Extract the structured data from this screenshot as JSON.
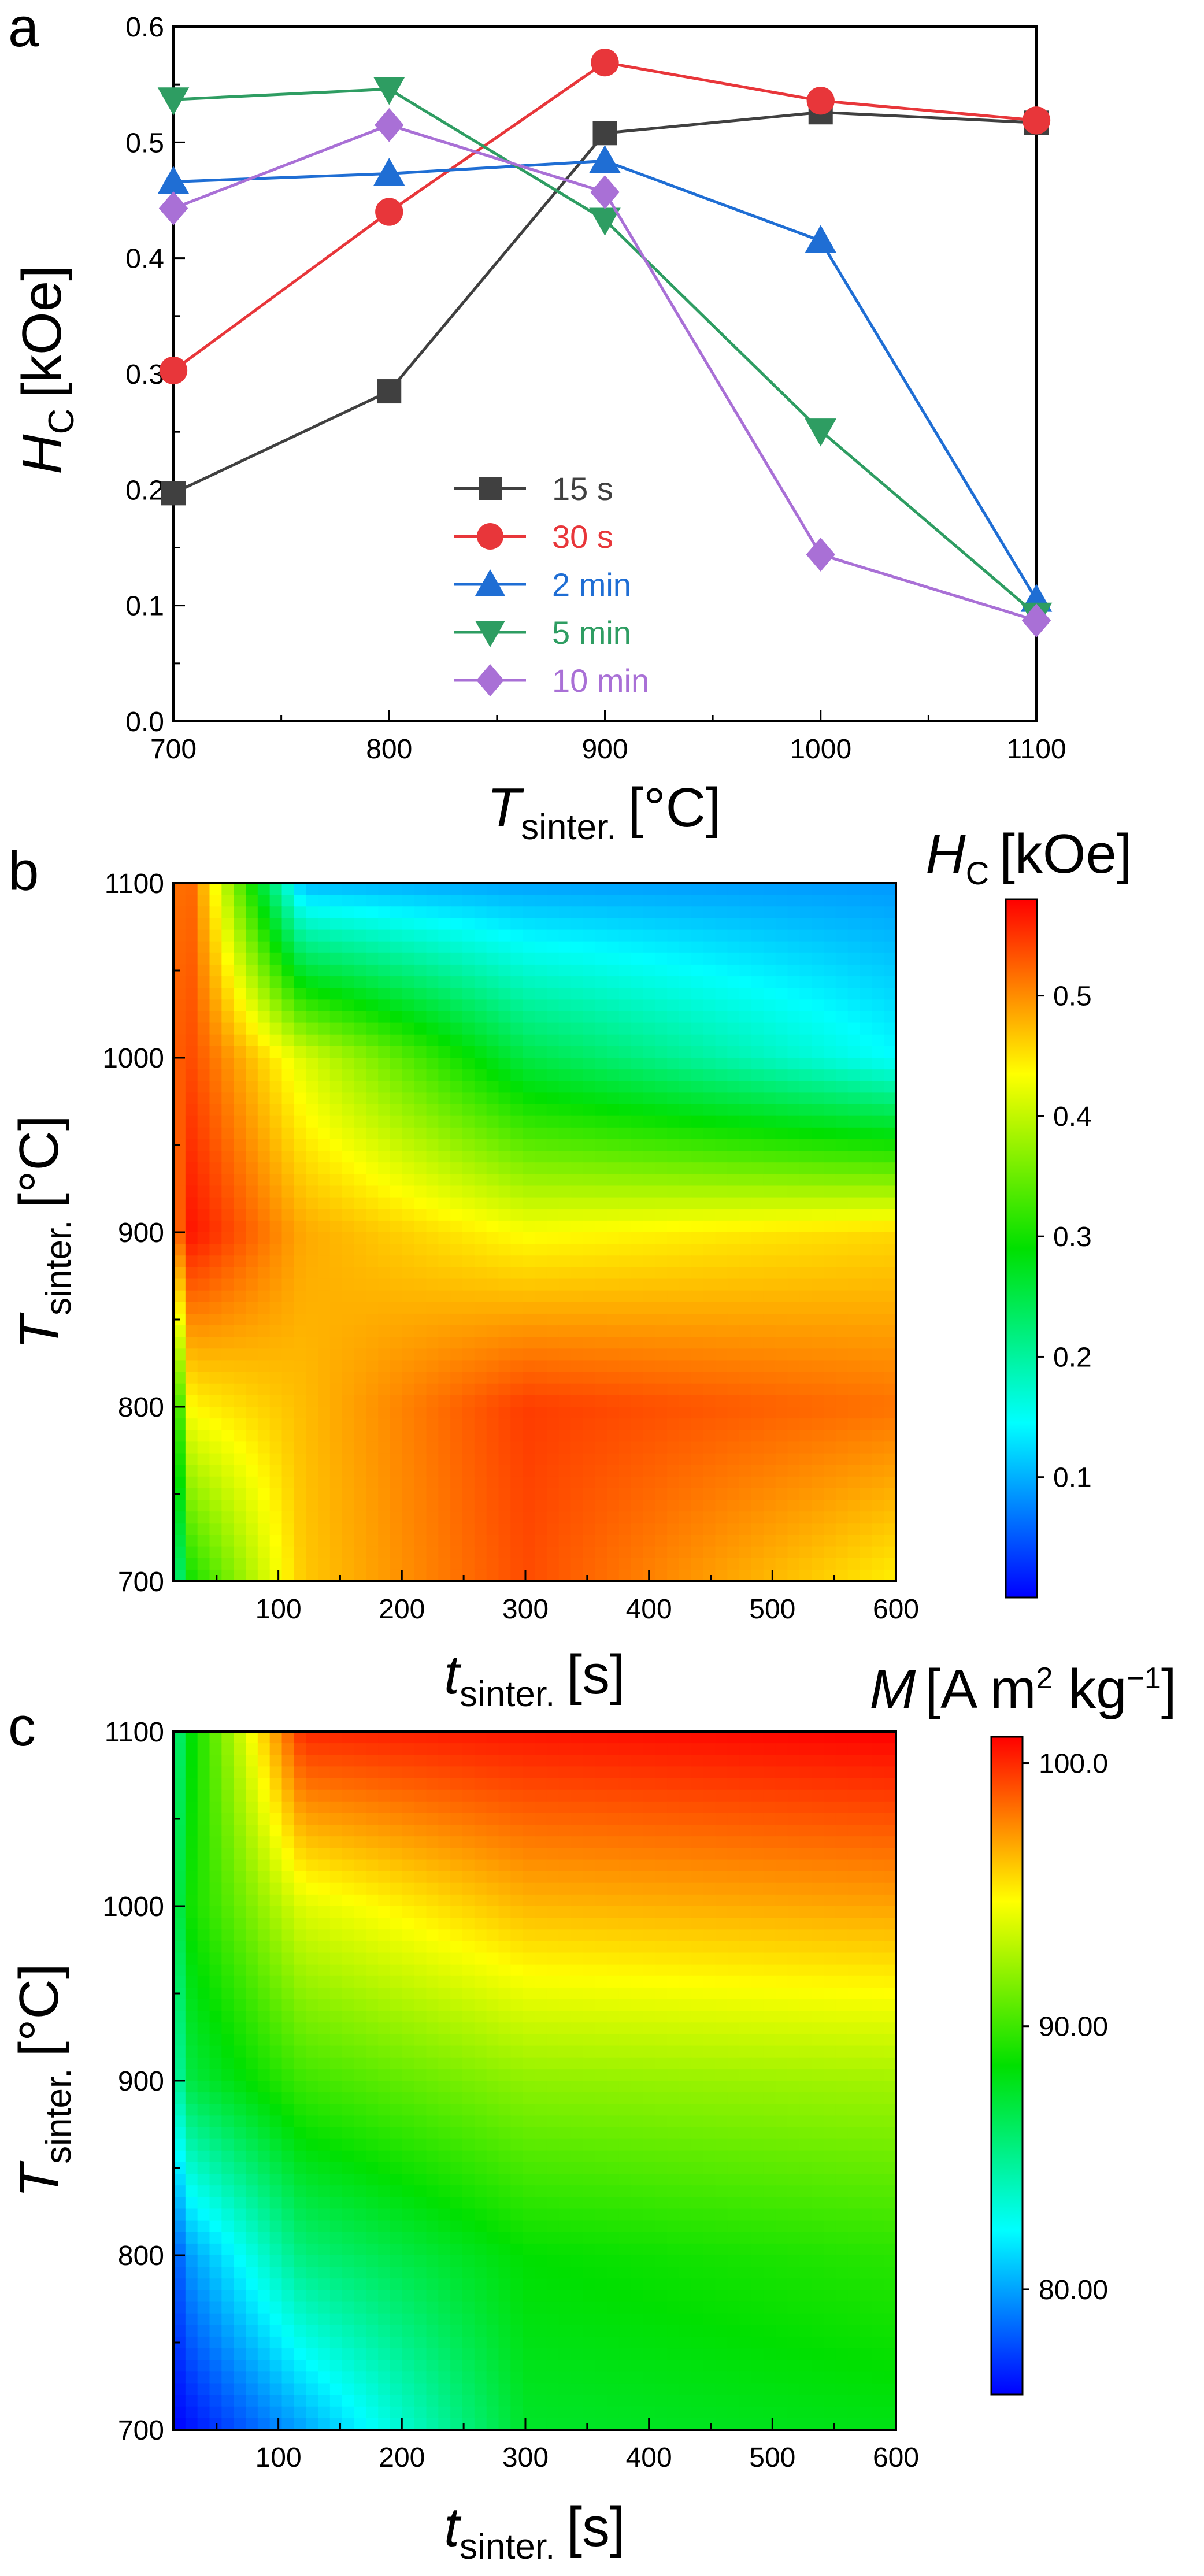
{
  "chart_data": [
    {
      "type": "line",
      "panel": "a",
      "xlabel": {
        "base": "T",
        "sub": "sinter.",
        "unit": "[°C]"
      },
      "ylabel": {
        "base": "H",
        "sub": "C",
        "unit": "[kOe]"
      },
      "xlim": [
        700,
        1100
      ],
      "ylim": [
        0.0,
        0.6
      ],
      "x_ticks": [
        "700",
        "800",
        "900",
        "1000",
        "1100"
      ],
      "y_ticks": [
        "0.0",
        "0.1",
        "0.2",
        "0.3",
        "0.4",
        "0.5",
        "0.6"
      ],
      "x": [
        700,
        800,
        900,
        1000,
        1100
      ],
      "legend_position": "lower-center",
      "series": [
        {
          "name": "15 s",
          "color": "#404040",
          "marker": "square",
          "values": [
            0.197,
            0.285,
            0.508,
            0.526,
            0.517
          ]
        },
        {
          "name": "30 s",
          "color": "#e8363a",
          "marker": "circle",
          "values": [
            0.303,
            0.44,
            0.569,
            0.536,
            0.519
          ]
        },
        {
          "name": "2 min",
          "color": "#1f6ed4",
          "marker": "triangle-up",
          "values": [
            0.466,
            0.473,
            0.484,
            0.415,
            0.105
          ]
        },
        {
          "name": "5 min",
          "color": "#2e9d62",
          "marker": "triangle-down",
          "values": [
            0.537,
            0.546,
            0.433,
            0.251,
            0.092
          ]
        },
        {
          "name": "10 min",
          "color": "#a970d6",
          "marker": "diamond",
          "values": [
            0.443,
            0.515,
            0.457,
            0.144,
            0.087
          ]
        }
      ]
    },
    {
      "type": "heatmap",
      "panel": "b",
      "xlabel": {
        "base": "t",
        "sub": "sinter.",
        "unit": "[s]"
      },
      "ylabel": {
        "base": "T",
        "sub": "sinter.",
        "unit": "[°C]"
      },
      "xlim": [
        15,
        600
      ],
      "ylim": [
        700,
        1100
      ],
      "x_ticks": [
        "100",
        "200",
        "300",
        "400",
        "500",
        "600"
      ],
      "y_ticks": [
        "700",
        "800",
        "900",
        "1000",
        "1100"
      ],
      "x": [
        15,
        30,
        120,
        300,
        600
      ],
      "y": [
        700,
        800,
        900,
        1000,
        1100
      ],
      "z": [
        [
          0.197,
          0.303,
          0.466,
          0.537,
          0.443
        ],
        [
          0.285,
          0.44,
          0.473,
          0.546,
          0.515
        ],
        [
          0.508,
          0.569,
          0.484,
          0.433,
          0.457
        ],
        [
          0.526,
          0.536,
          0.415,
          0.251,
          0.144
        ],
        [
          0.517,
          0.519,
          0.105,
          0.092,
          0.087
        ]
      ],
      "colorbar": {
        "label_base": "H",
        "label_sub": "C",
        "label_unit": "[kOe]",
        "min": 0.0,
        "max": 0.58,
        "ticks": [
          "0.1",
          "0.2",
          "0.3",
          "0.4",
          "0.5"
        ]
      }
    },
    {
      "type": "heatmap",
      "panel": "c",
      "xlabel": {
        "base": "t",
        "sub": "sinter.",
        "unit": "[s]"
      },
      "ylabel": {
        "base": "T",
        "sub": "sinter.",
        "unit": "[°C]"
      },
      "xlim": [
        15,
        600
      ],
      "ylim": [
        700,
        1100
      ],
      "x_ticks": [
        "100",
        "200",
        "300",
        "400",
        "500",
        "600"
      ],
      "y_ticks": [
        "700",
        "800",
        "900",
        "1000",
        "1100"
      ],
      "x": [
        15,
        30,
        120,
        300,
        600
      ],
      "y": [
        700,
        800,
        900,
        1000,
        1100
      ],
      "z": [
        [
          76.0,
          76.5,
          80.0,
          87.5,
          88.0
        ],
        [
          78.0,
          80.0,
          85.5,
          88.5,
          89.5
        ],
        [
          84.0,
          87.0,
          90.0,
          92.0,
          92.5
        ],
        [
          86.0,
          89.0,
          94.0,
          96.5,
          97.0
        ],
        [
          85.0,
          88.5,
          100.0,
          100.5,
          101.0
        ]
      ],
      "colorbar": {
        "label_base": "M",
        "label_unit": "[A m",
        "label_sup": "2",
        "label_unit2": " kg",
        "label_sup2": "−1",
        "label_close": "]",
        "min": 76.0,
        "max": 101.0,
        "ticks": [
          "80.00",
          "90.00",
          "100.0"
        ]
      }
    }
  ],
  "panel_labels": [
    "a",
    "b",
    "c"
  ]
}
